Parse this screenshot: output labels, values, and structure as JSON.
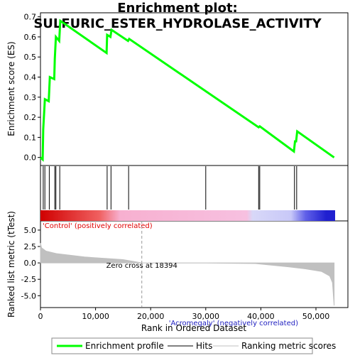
{
  "chart_data": {
    "type": "enrichment",
    "title_line1": "Enrichment plot:",
    "title_line2": "SULFURIC_ESTER_HYDROLASE_ACTIVITY",
    "es_ylabel": "Enrichment score (ES)",
    "metric_ylabel": "Ranked list metric (tTest)",
    "xlabel": "Rank in Ordered Dataset",
    "positive_label": "'Control' (positively correlated)",
    "negative_label": "'Acromegaly' (negatively correlated)",
    "zero_cross": {
      "value": 18394,
      "label": "Zero cross at 18394"
    },
    "legend": [
      "Enrichment profile",
      "Hits",
      "Ranking metric scores"
    ],
    "colors": {
      "profile": "#00ff00",
      "hits": "#000000",
      "metric": "#c0c0c0"
    },
    "xlim": [
      0,
      55800
    ],
    "xticks": [
      0,
      {
        "value": 10000,
        "label": "10,000"
      },
      {
        "value": 20000,
        "label": "20,000"
      },
      {
        "value": 30000,
        "label": "30,000"
      },
      {
        "value": 40000,
        "label": "40,000"
      },
      {
        "value": 50000,
        "label": "50,000"
      }
    ],
    "es_ylim": [
      -0.04,
      0.72
    ],
    "es_yticks": [
      {
        "value": 0,
        "label": "0.0"
      },
      0.1,
      0.2,
      0.3,
      0.4,
      0.5,
      0.6,
      0.7
    ],
    "es_x": [
      0,
      400,
      500,
      800,
      1500,
      1700,
      2500,
      2600,
      2800,
      3400,
      3600,
      12000,
      12100,
      12700,
      12900,
      15900,
      16100,
      39600,
      39800,
      46000,
      46200,
      46400,
      46600,
      53300
    ],
    "es_y": [
      0,
      -0.01,
      0.14,
      0.29,
      0.28,
      0.4,
      0.39,
      0.49,
      0.6,
      0.58,
      0.68,
      0.52,
      0.61,
      0.6,
      0.635,
      0.58,
      0.59,
      0.15,
      0.155,
      0.03,
      0.08,
      0.08,
      0.13,
      0
    ],
    "hits": [
      500,
      800,
      1600,
      2600,
      2800,
      3500,
      12100,
      12800,
      16000,
      30000,
      39600,
      39800,
      46100,
      46500
    ],
    "metric_ylim": [
      -6.7,
      6.4
    ],
    "metric_yticks": [
      {
        "value": 5,
        "label": "5.0"
      },
      2.5,
      {
        "value": 0,
        "label": "0.0"
      },
      -2.5,
      {
        "value": -5,
        "label": "-5.0"
      }
    ],
    "metric_x": [
      0,
      200,
      1000,
      3000,
      8000,
      15000,
      18394,
      30000,
      39000,
      45000,
      48000,
      51000,
      52500,
      53000,
      53300
    ],
    "metric_y": [
      3.0,
      2.3,
      1.8,
      1.4,
      0.9,
      0.5,
      0,
      -0.02,
      -0.1,
      -0.6,
      -0.9,
      -1.3,
      -2.0,
      -3.0,
      -6.5
    ]
  }
}
